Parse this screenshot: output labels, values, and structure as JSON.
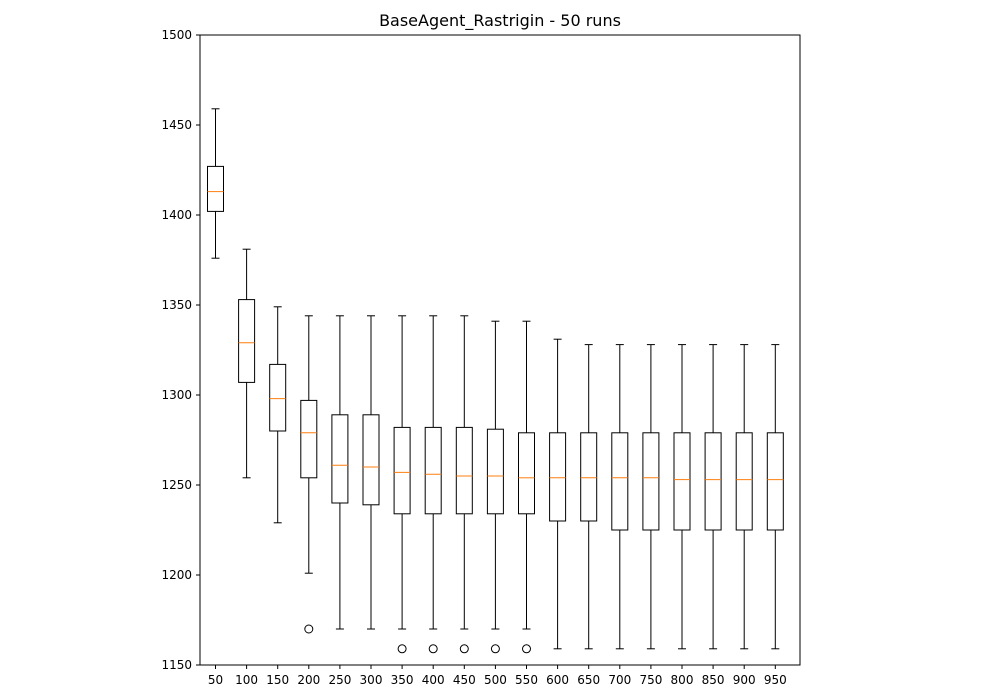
{
  "chart_data": {
    "type": "box",
    "title": "BaseAgent_Rastrigin - 50 runs",
    "xlabel": "",
    "ylabel": "",
    "ylim": [
      1150,
      1500
    ],
    "yticks": [
      1150,
      1200,
      1250,
      1300,
      1350,
      1400,
      1450,
      1500
    ],
    "categories": [
      "50",
      "100",
      "150",
      "200",
      "250",
      "300",
      "350",
      "400",
      "450",
      "500",
      "550",
      "600",
      "650",
      "700",
      "750",
      "800",
      "850",
      "900",
      "950"
    ],
    "boxes": [
      {
        "whisker_low": 1376,
        "q1": 1402,
        "median": 1413,
        "q3": 1427,
        "whisker_high": 1459,
        "outliers": []
      },
      {
        "whisker_low": 1254,
        "q1": 1307,
        "median": 1329,
        "q3": 1353,
        "whisker_high": 1381,
        "outliers": []
      },
      {
        "whisker_low": 1229,
        "q1": 1280,
        "median": 1298,
        "q3": 1317,
        "whisker_high": 1349,
        "outliers": []
      },
      {
        "whisker_low": 1201,
        "q1": 1254,
        "median": 1279,
        "q3": 1297,
        "whisker_high": 1344,
        "outliers": [
          1170
        ]
      },
      {
        "whisker_low": 1170,
        "q1": 1240,
        "median": 1261,
        "q3": 1289,
        "whisker_high": 1344,
        "outliers": []
      },
      {
        "whisker_low": 1170,
        "q1": 1239,
        "median": 1260,
        "q3": 1289,
        "whisker_high": 1344,
        "outliers": []
      },
      {
        "whisker_low": 1170,
        "q1": 1234,
        "median": 1257,
        "q3": 1282,
        "whisker_high": 1344,
        "outliers": [
          1159
        ]
      },
      {
        "whisker_low": 1170,
        "q1": 1234,
        "median": 1256,
        "q3": 1282,
        "whisker_high": 1344,
        "outliers": [
          1159
        ]
      },
      {
        "whisker_low": 1170,
        "q1": 1234,
        "median": 1255,
        "q3": 1282,
        "whisker_high": 1344,
        "outliers": [
          1159
        ]
      },
      {
        "whisker_low": 1170,
        "q1": 1234,
        "median": 1255,
        "q3": 1281,
        "whisker_high": 1341,
        "outliers": [
          1159
        ]
      },
      {
        "whisker_low": 1170,
        "q1": 1234,
        "median": 1254,
        "q3": 1279,
        "whisker_high": 1341,
        "outliers": [
          1159
        ]
      },
      {
        "whisker_low": 1159,
        "q1": 1230,
        "median": 1254,
        "q3": 1279,
        "whisker_high": 1331,
        "outliers": []
      },
      {
        "whisker_low": 1159,
        "q1": 1230,
        "median": 1254,
        "q3": 1279,
        "whisker_high": 1328,
        "outliers": []
      },
      {
        "whisker_low": 1159,
        "q1": 1225,
        "median": 1254,
        "q3": 1279,
        "whisker_high": 1328,
        "outliers": []
      },
      {
        "whisker_low": 1159,
        "q1": 1225,
        "median": 1254,
        "q3": 1279,
        "whisker_high": 1328,
        "outliers": []
      },
      {
        "whisker_low": 1159,
        "q1": 1225,
        "median": 1253,
        "q3": 1279,
        "whisker_high": 1328,
        "outliers": []
      },
      {
        "whisker_low": 1159,
        "q1": 1225,
        "median": 1253,
        "q3": 1279,
        "whisker_high": 1328,
        "outliers": []
      },
      {
        "whisker_low": 1159,
        "q1": 1225,
        "median": 1253,
        "q3": 1279,
        "whisker_high": 1328,
        "outliers": []
      },
      {
        "whisker_low": 1159,
        "q1": 1225,
        "median": 1253,
        "q3": 1279,
        "whisker_high": 1328,
        "outliers": []
      }
    ],
    "colors": {
      "box": "#000000",
      "median": "#ff7f0e",
      "background": "#ffffff"
    },
    "grid": false,
    "legend": false
  }
}
